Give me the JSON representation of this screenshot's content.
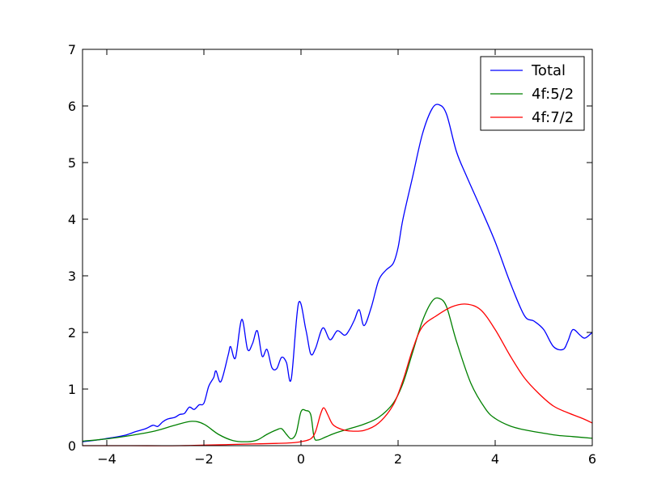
{
  "chart_data": {
    "type": "line",
    "title": "",
    "xlabel": "",
    "ylabel": "",
    "xlim": [
      -4.5,
      6
    ],
    "ylim": [
      0,
      7
    ],
    "xticks": [
      -4,
      -2,
      0,
      2,
      4,
      6
    ],
    "xtick_labels": [
      "−4",
      "−2",
      "0",
      "2",
      "4",
      "6"
    ],
    "yticks": [
      0,
      1,
      2,
      3,
      4,
      5,
      6,
      7
    ],
    "ytick_labels": [
      "0",
      "1",
      "2",
      "3",
      "4",
      "5",
      "6",
      "7"
    ],
    "grid": false,
    "legend_position": "upper right",
    "series": [
      {
        "name": "Total",
        "color": "#0000ff",
        "points": [
          [
            -4.5,
            0.07
          ],
          [
            -4.2,
            0.1
          ],
          [
            -3.9,
            0.14
          ],
          [
            -3.6,
            0.19
          ],
          [
            -3.4,
            0.25
          ],
          [
            -3.2,
            0.3
          ],
          [
            -3.05,
            0.36
          ],
          [
            -2.95,
            0.34
          ],
          [
            -2.85,
            0.42
          ],
          [
            -2.75,
            0.47
          ],
          [
            -2.6,
            0.5
          ],
          [
            -2.5,
            0.55
          ],
          [
            -2.4,
            0.57
          ],
          [
            -2.3,
            0.68
          ],
          [
            -2.2,
            0.64
          ],
          [
            -2.1,
            0.72
          ],
          [
            -2.0,
            0.75
          ],
          [
            -1.9,
            1.05
          ],
          [
            -1.8,
            1.2
          ],
          [
            -1.75,
            1.32
          ],
          [
            -1.65,
            1.13
          ],
          [
            -1.5,
            1.6
          ],
          [
            -1.45,
            1.75
          ],
          [
            -1.35,
            1.55
          ],
          [
            -1.22,
            2.23
          ],
          [
            -1.1,
            1.7
          ],
          [
            -1.0,
            1.8
          ],
          [
            -0.9,
            2.03
          ],
          [
            -0.8,
            1.58
          ],
          [
            -0.7,
            1.7
          ],
          [
            -0.6,
            1.38
          ],
          [
            -0.5,
            1.36
          ],
          [
            -0.4,
            1.56
          ],
          [
            -0.3,
            1.47
          ],
          [
            -0.2,
            1.18
          ],
          [
            -0.05,
            2.52
          ],
          [
            0.1,
            2.05
          ],
          [
            0.2,
            1.62
          ],
          [
            0.3,
            1.72
          ],
          [
            0.45,
            2.08
          ],
          [
            0.6,
            1.87
          ],
          [
            0.75,
            2.03
          ],
          [
            0.9,
            1.95
          ],
          [
            1.0,
            2.05
          ],
          [
            1.1,
            2.22
          ],
          [
            1.2,
            2.4
          ],
          [
            1.3,
            2.12
          ],
          [
            1.45,
            2.45
          ],
          [
            1.6,
            2.92
          ],
          [
            1.75,
            3.1
          ],
          [
            1.9,
            3.22
          ],
          [
            2.0,
            3.5
          ],
          [
            2.1,
            4.0
          ],
          [
            2.3,
            4.75
          ],
          [
            2.5,
            5.5
          ],
          [
            2.7,
            5.95
          ],
          [
            2.85,
            6.02
          ],
          [
            3.0,
            5.85
          ],
          [
            3.2,
            5.2
          ],
          [
            3.4,
            4.78
          ],
          [
            3.7,
            4.2
          ],
          [
            4.0,
            3.6
          ],
          [
            4.3,
            2.9
          ],
          [
            4.6,
            2.3
          ],
          [
            4.8,
            2.2
          ],
          [
            5.0,
            2.05
          ],
          [
            5.2,
            1.75
          ],
          [
            5.4,
            1.7
          ],
          [
            5.5,
            1.85
          ],
          [
            5.6,
            2.05
          ],
          [
            5.75,
            1.95
          ],
          [
            5.85,
            1.9
          ],
          [
            6.0,
            2.0
          ]
        ]
      },
      {
        "name": "4f:5/2",
        "color": "#008000",
        "points": [
          [
            -4.5,
            0.08
          ],
          [
            -4.0,
            0.12
          ],
          [
            -3.5,
            0.18
          ],
          [
            -3.0,
            0.26
          ],
          [
            -2.6,
            0.36
          ],
          [
            -2.25,
            0.43
          ],
          [
            -2.0,
            0.38
          ],
          [
            -1.7,
            0.2
          ],
          [
            -1.4,
            0.09
          ],
          [
            -1.1,
            0.07
          ],
          [
            -0.9,
            0.1
          ],
          [
            -0.7,
            0.2
          ],
          [
            -0.5,
            0.28
          ],
          [
            -0.4,
            0.3
          ],
          [
            -0.3,
            0.2
          ],
          [
            -0.2,
            0.12
          ],
          [
            -0.1,
            0.22
          ],
          [
            0.0,
            0.6
          ],
          [
            0.1,
            0.62
          ],
          [
            0.2,
            0.55
          ],
          [
            0.27,
            0.15
          ],
          [
            0.35,
            0.1
          ],
          [
            0.5,
            0.15
          ],
          [
            0.7,
            0.22
          ],
          [
            1.0,
            0.3
          ],
          [
            1.3,
            0.38
          ],
          [
            1.6,
            0.5
          ],
          [
            1.9,
            0.75
          ],
          [
            2.1,
            1.1
          ],
          [
            2.3,
            1.65
          ],
          [
            2.5,
            2.2
          ],
          [
            2.7,
            2.55
          ],
          [
            2.85,
            2.6
          ],
          [
            3.0,
            2.45
          ],
          [
            3.2,
            1.85
          ],
          [
            3.5,
            1.1
          ],
          [
            3.8,
            0.65
          ],
          [
            4.0,
            0.48
          ],
          [
            4.3,
            0.35
          ],
          [
            4.6,
            0.28
          ],
          [
            5.0,
            0.22
          ],
          [
            5.3,
            0.18
          ],
          [
            5.6,
            0.16
          ],
          [
            6.0,
            0.13
          ]
        ]
      },
      {
        "name": "4f:7/2",
        "color": "#ff0000",
        "points": [
          [
            -4.5,
            0.0
          ],
          [
            -3.5,
            0.0
          ],
          [
            -2.5,
            0.0
          ],
          [
            -1.5,
            0.02
          ],
          [
            -1.0,
            0.03
          ],
          [
            -0.5,
            0.04
          ],
          [
            -0.2,
            0.05
          ],
          [
            0.0,
            0.07
          ],
          [
            0.2,
            0.12
          ],
          [
            0.3,
            0.25
          ],
          [
            0.4,
            0.55
          ],
          [
            0.47,
            0.67
          ],
          [
            0.55,
            0.55
          ],
          [
            0.65,
            0.38
          ],
          [
            0.8,
            0.3
          ],
          [
            1.0,
            0.26
          ],
          [
            1.3,
            0.27
          ],
          [
            1.6,
            0.4
          ],
          [
            1.9,
            0.72
          ],
          [
            2.1,
            1.15
          ],
          [
            2.3,
            1.7
          ],
          [
            2.5,
            2.1
          ],
          [
            2.8,
            2.3
          ],
          [
            3.1,
            2.45
          ],
          [
            3.4,
            2.5
          ],
          [
            3.7,
            2.4
          ],
          [
            4.0,
            2.05
          ],
          [
            4.3,
            1.6
          ],
          [
            4.6,
            1.2
          ],
          [
            4.9,
            0.92
          ],
          [
            5.2,
            0.7
          ],
          [
            5.5,
            0.58
          ],
          [
            5.8,
            0.48
          ],
          [
            6.0,
            0.4
          ]
        ]
      }
    ]
  }
}
